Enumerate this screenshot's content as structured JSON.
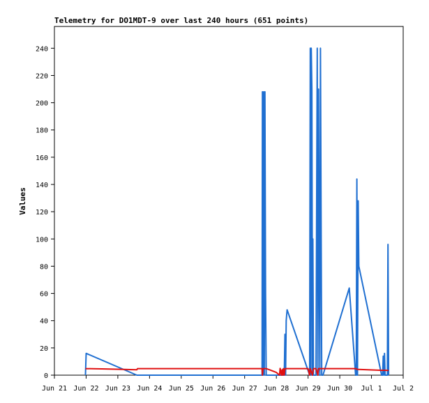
{
  "chart_data": {
    "type": "line",
    "title": "Telemetry for DO1MDT-9 over last 240 hours (651 points)",
    "xlabel": "",
    "ylabel": "Values",
    "x_unit": "days (Jun 21 = 0)",
    "xlim": [
      0,
      11
    ],
    "ylim": [
      0,
      256
    ],
    "x_ticks": [
      {
        "pos": 0,
        "label": "Jun 21"
      },
      {
        "pos": 1,
        "label": "Jun 22"
      },
      {
        "pos": 2,
        "label": "Jun 23"
      },
      {
        "pos": 3,
        "label": "Jun 24"
      },
      {
        "pos": 4,
        "label": "Jun 25"
      },
      {
        "pos": 5,
        "label": "Jun 26"
      },
      {
        "pos": 6,
        "label": "Jun 27"
      },
      {
        "pos": 7,
        "label": "Jun 28"
      },
      {
        "pos": 8,
        "label": "Jun 29"
      },
      {
        "pos": 9,
        "label": "Jun 30"
      },
      {
        "pos": 10,
        "label": "Jul 1"
      },
      {
        "pos": 11,
        "label": "Jul 2"
      }
    ],
    "y_ticks": [
      0,
      20,
      40,
      60,
      80,
      100,
      120,
      140,
      160,
      180,
      200,
      220,
      240
    ],
    "grid": false,
    "legend": "none",
    "series": [
      {
        "color": "#1f6fd1",
        "points": [
          [
            0.98,
            0
          ],
          [
            1.0,
            16
          ],
          [
            2.6,
            0
          ],
          [
            2.62,
            0
          ],
          [
            6.55,
            0
          ],
          [
            6.56,
            208
          ],
          [
            6.58,
            0
          ],
          [
            6.6,
            208
          ],
          [
            6.62,
            0
          ],
          [
            6.64,
            208
          ],
          [
            6.66,
            60
          ],
          [
            6.68,
            0
          ],
          [
            7.25,
            0
          ],
          [
            7.27,
            30
          ],
          [
            7.29,
            0
          ],
          [
            7.31,
            40
          ],
          [
            7.34,
            48
          ],
          [
            8.05,
            0
          ],
          [
            8.07,
            240
          ],
          [
            8.09,
            0
          ],
          [
            8.1,
            240
          ],
          [
            8.12,
            210
          ],
          [
            8.14,
            0
          ],
          [
            8.15,
            100
          ],
          [
            8.17,
            0
          ],
          [
            8.25,
            0
          ],
          [
            8.27,
            120
          ],
          [
            8.29,
            240
          ],
          [
            8.31,
            0
          ],
          [
            8.33,
            210
          ],
          [
            8.35,
            90
          ],
          [
            8.37,
            0
          ],
          [
            8.39,
            240
          ],
          [
            8.41,
            120
          ],
          [
            8.43,
            0
          ],
          [
            8.45,
            0
          ],
          [
            8.47,
            0
          ],
          [
            9.3,
            64
          ],
          [
            9.5,
            0
          ],
          [
            9.52,
            0
          ],
          [
            9.54,
            144
          ],
          [
            9.56,
            0
          ],
          [
            9.58,
            128
          ],
          [
            9.6,
            80
          ],
          [
            10.32,
            0
          ],
          [
            10.35,
            0
          ],
          [
            10.37,
            14
          ],
          [
            10.39,
            0
          ],
          [
            10.41,
            16
          ],
          [
            10.43,
            0
          ],
          [
            10.5,
            0
          ],
          [
            10.52,
            96
          ],
          [
            10.54,
            0
          ]
        ]
      },
      {
        "color": "#e01010",
        "points": [
          [
            0.98,
            4.8
          ],
          [
            1.5,
            4.6
          ],
          [
            2.2,
            4.2
          ],
          [
            2.6,
            4.0
          ],
          [
            2.62,
            4.8
          ],
          [
            6.5,
            4.8
          ],
          [
            6.55,
            4.8
          ],
          [
            6.56,
            0
          ],
          [
            6.58,
            4.8
          ],
          [
            6.68,
            4.8
          ],
          [
            6.8,
            3.8
          ],
          [
            7.0,
            2.0
          ],
          [
            7.1,
            0
          ],
          [
            7.12,
            5
          ],
          [
            7.16,
            0
          ],
          [
            7.18,
            4
          ],
          [
            7.2,
            0
          ],
          [
            7.22,
            4.8
          ],
          [
            7.25,
            0
          ],
          [
            7.27,
            4.8
          ],
          [
            8.0,
            4.8
          ],
          [
            8.05,
            0
          ],
          [
            8.07,
            4.8
          ],
          [
            8.14,
            0
          ],
          [
            8.17,
            4.8
          ],
          [
            8.25,
            4.8
          ],
          [
            8.31,
            0
          ],
          [
            8.33,
            4.8
          ],
          [
            8.45,
            4.8
          ],
          [
            9.3,
            4.8
          ],
          [
            9.5,
            4.8
          ],
          [
            9.56,
            4.2
          ],
          [
            9.6,
            4.2
          ],
          [
            10.3,
            3.6
          ],
          [
            10.43,
            3.6
          ],
          [
            10.54,
            3.5
          ]
        ]
      }
    ]
  }
}
